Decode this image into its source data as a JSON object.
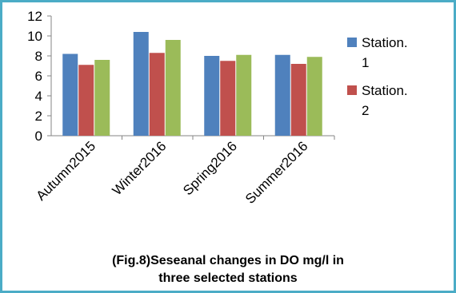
{
  "chart_data": {
    "type": "bar",
    "categories": [
      "Autumn2015",
      "Winter2016",
      "Spring2016",
      "Summer2016"
    ],
    "series": [
      {
        "name": "Station. 1",
        "values": [
          8.2,
          10.4,
          8.0,
          8.1
        ]
      },
      {
        "name": "Station. 2",
        "values": [
          7.1,
          8.3,
          7.5,
          7.2
        ]
      },
      {
        "name": "",
        "values": [
          7.6,
          9.6,
          8.1,
          7.9
        ]
      }
    ],
    "colors": [
      "#4f81bd",
      "#c0504d",
      "#9bbb59"
    ],
    "legend": {
      "placement": "right",
      "entries": [
        {
          "line1": "Station.",
          "line2": "1",
          "color": "#4f81bd"
        },
        {
          "line1": "Station.",
          "line2": "2",
          "color": "#c0504d"
        }
      ]
    },
    "ylim": [
      0,
      12
    ],
    "yticks": [
      "0",
      "2",
      "4",
      "6",
      "8",
      "10",
      "12"
    ],
    "grid": false,
    "xlabel": "",
    "ylabel": ""
  },
  "caption": {
    "line1": "(Fig.8)Seseanal changes in DO  mg/l  in",
    "line2": "three selected stations"
  }
}
